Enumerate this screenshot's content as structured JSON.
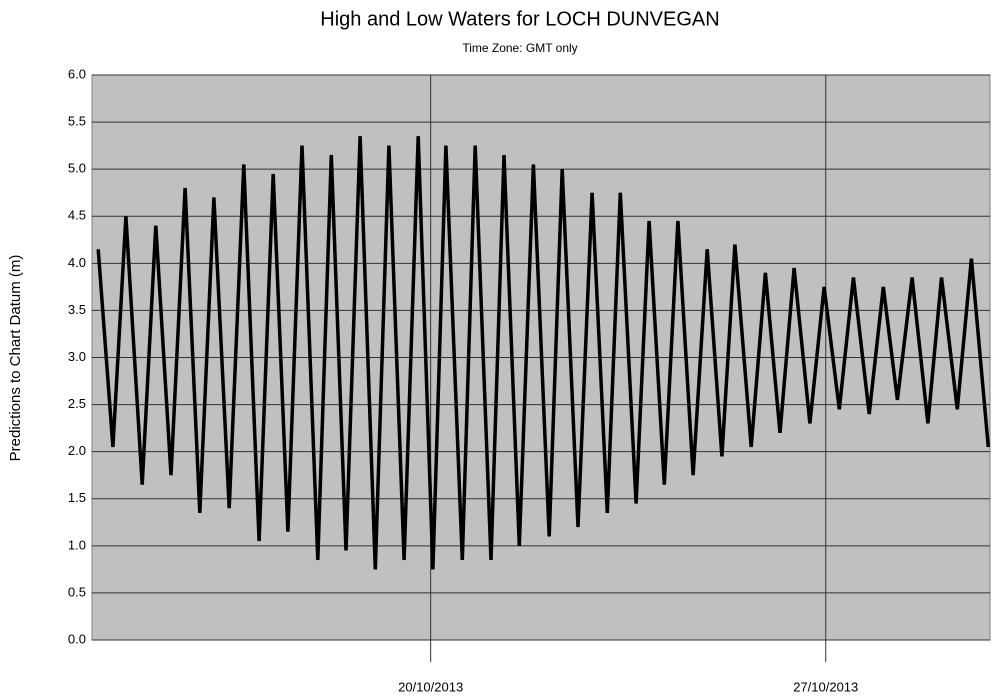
{
  "chart_data": {
    "type": "line",
    "title": "High and Low Waters for LOCH DUNVEGAN",
    "subtitle": "Time Zone: GMT only",
    "y_label": "Predictions to Chart Datum (m)",
    "x": [
      14.11,
      14.37,
      14.6,
      14.89,
      15.13,
      15.4,
      15.65,
      15.91,
      16.16,
      16.43,
      16.69,
      16.96,
      17.21,
      17.47,
      17.72,
      18.0,
      18.24,
      18.5,
      18.75,
      19.02,
      19.26,
      19.53,
      19.78,
      20.04,
      20.27,
      20.56,
      20.79,
      21.07,
      21.3,
      21.57,
      21.82,
      22.1,
      22.33,
      22.61,
      22.86,
      23.13,
      23.36,
      23.64,
      23.87,
      24.14,
      24.38,
      24.65,
      24.9,
      25.16,
      25.39,
      25.68,
      25.93,
      26.19,
      26.44,
      26.72,
      26.97,
      27.24,
      27.49,
      27.77,
      28.02,
      28.27,
      28.53,
      28.81,
      29.05,
      29.33,
      29.58,
      29.88
    ],
    "series": [
      {
        "color": "#000000",
        "values": [
          4.15,
          2.05,
          4.5,
          1.65,
          4.4,
          1.75,
          4.8,
          1.35,
          4.7,
          1.4,
          5.05,
          1.05,
          4.95,
          1.15,
          5.25,
          0.85,
          5.15,
          0.95,
          5.35,
          0.75,
          5.25,
          0.85,
          5.35,
          0.75,
          5.25,
          0.85,
          5.25,
          0.85,
          5.15,
          1.0,
          5.05,
          1.1,
          5.0,
          1.2,
          4.75,
          1.35,
          4.75,
          1.45,
          4.45,
          1.65,
          4.45,
          1.75,
          4.15,
          1.95,
          4.2,
          2.05,
          3.9,
          2.2,
          3.95,
          2.3,
          3.75,
          2.45,
          3.85,
          2.4,
          3.75,
          2.55,
          3.85,
          2.3,
          3.85,
          2.45,
          4.05,
          2.05
        ]
      }
    ],
    "xlim": [
      14,
      29.91
    ],
    "xticks": [
      {
        "value": 20,
        "label": "20/10/2013"
      },
      {
        "value": 27,
        "label": "27/10/2013"
      }
    ],
    "ylim": [
      0,
      6
    ],
    "yticks": [
      {
        "value": 0,
        "label": "0.0"
      },
      0.5,
      {
        "value": 1,
        "label": "1.0"
      },
      1.5,
      {
        "value": 2,
        "label": "2.0"
      },
      2.5,
      {
        "value": 3,
        "label": "3.0"
      },
      3.5,
      {
        "value": 4,
        "label": "4.0"
      },
      4.5,
      {
        "value": 5,
        "label": "5.0"
      },
      5.5,
      {
        "value": 6,
        "label": "6.0"
      }
    ],
    "grid": true,
    "background": "#c0c0c0"
  }
}
